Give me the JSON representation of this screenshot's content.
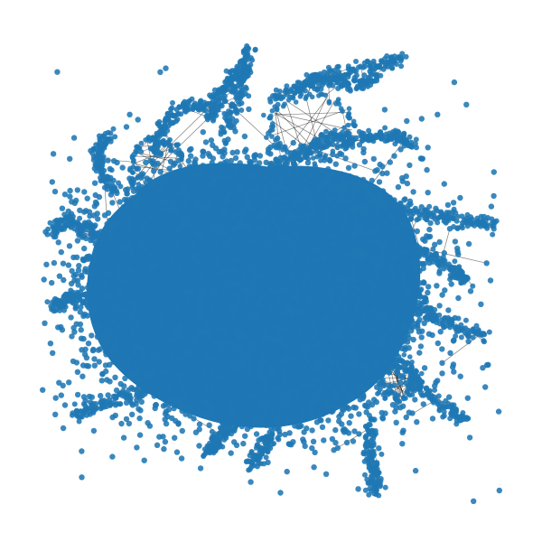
{
  "chart_data": {
    "type": "network-graph",
    "layout": "force-directed",
    "node_color": "#1f77b4",
    "edge_color": "#000000",
    "axes": "off",
    "title": ""
  }
}
